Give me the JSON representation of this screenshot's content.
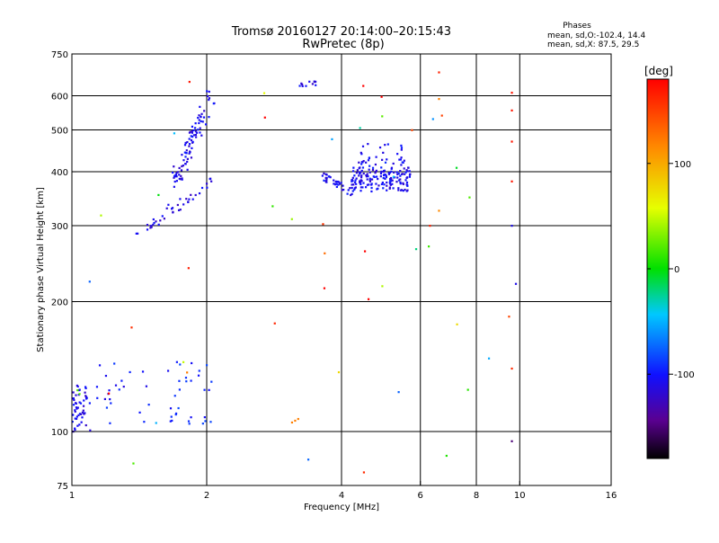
{
  "chart_data": {
    "type": "scatter",
    "title": "Tromsø 20160127 20:14:00–20:15:43",
    "subtitle": "RwPretec (8p)",
    "stats": {
      "header": "Phases",
      "line1": "mean, sd,O:-102.4, 14.4",
      "line2": "mean, sd,X:  87.5, 29.5"
    },
    "xlabel": "Frequency [MHz]",
    "ylabel": "Stationary phase Virtual Height [km]",
    "x_scale": "log",
    "y_scale": "log",
    "xlim": [
      1,
      16
    ],
    "ylim": [
      75,
      750
    ],
    "x_ticks": [
      {
        "v": 1,
        "label": "1"
      },
      {
        "v": 2,
        "label": "2"
      },
      {
        "v": 4,
        "label": "4"
      },
      {
        "v": 6,
        "label": "6"
      },
      {
        "v": 8,
        "label": "8"
      },
      {
        "v": 10,
        "label": "10"
      },
      {
        "v": 16,
        "label": "16"
      }
    ],
    "x_grid": [
      2,
      4,
      6,
      8,
      10
    ],
    "y_ticks": [
      {
        "v": 75,
        "label": "75"
      },
      {
        "v": 100,
        "label": "100"
      },
      {
        "v": 200,
        "label": "200"
      },
      {
        "v": 300,
        "label": "300"
      },
      {
        "v": 400,
        "label": "400"
      },
      {
        "v": 500,
        "label": "500"
      },
      {
        "v": 600,
        "label": "600"
      },
      {
        "v": 750,
        "label": "750"
      }
    ],
    "y_grid": [
      100,
      200,
      300,
      400,
      500,
      600
    ],
    "colorbar": {
      "unit": "[deg]",
      "range": [
        -180,
        180
      ],
      "ticks": [
        {
          "v": 100,
          "label": "100"
        },
        {
          "v": 0,
          "label": "0"
        },
        {
          "v": -100,
          "label": "-100"
        }
      ]
    },
    "clusters": [
      {
        "kind": "band",
        "x": [
          1.0,
          1.1
        ],
        "y": [
          100,
          128
        ],
        "phase": -108,
        "n": 55,
        "seed": 11
      },
      {
        "kind": "band",
        "x": [
          1.1,
          1.5
        ],
        "y": [
          104,
          150
        ],
        "phase": -100,
        "n": 22,
        "seed": 12
      },
      {
        "kind": "band",
        "x": [
          1.6,
          2.05
        ],
        "y": [
          104,
          145
        ],
        "phase": -95,
        "n": 30,
        "seed": 13
      },
      {
        "kind": "line",
        "x": [
          1.38,
          2.05
        ],
        "y": [
          285,
          380
        ],
        "phase": -110,
        "n": 40,
        "spread": 0.04,
        "seed": 21
      },
      {
        "kind": "line",
        "x": [
          1.7,
          2.05
        ],
        "y": [
          380,
          600
        ],
        "phase": -110,
        "n": 90,
        "spread": 0.05,
        "seed": 22
      },
      {
        "kind": "line",
        "x": [
          3.6,
          4.2
        ],
        "y": [
          395,
          358
        ],
        "phase": -108,
        "n": 35,
        "spread": 0.025,
        "seed": 31
      },
      {
        "kind": "band",
        "x": [
          4.2,
          5.7
        ],
        "y": [
          360,
          410
        ],
        "phase": -108,
        "n": 160,
        "seed": 32
      },
      {
        "kind": "band",
        "x": [
          4.3,
          5.6
        ],
        "y": [
          410,
          470
        ],
        "phase": -105,
        "n": 35,
        "seed": 33
      },
      {
        "kind": "band",
        "x": [
          1.0,
          11.0
        ],
        "y": [
          80,
          650
        ],
        "phase": 60,
        "n": 45,
        "seed": 41,
        "phase_spread": 140
      },
      {
        "kind": "band",
        "x": [
          3.2,
          3.5
        ],
        "y": [
          630,
          650
        ],
        "phase": -110,
        "n": 10,
        "seed": 42
      }
    ],
    "points": [
      {
        "x": 3.5,
        "y": 635,
        "phase": -100
      },
      {
        "x": 3.1,
        "y": 105,
        "phase": 120
      },
      {
        "x": 3.15,
        "y": 106,
        "phase": 120
      },
      {
        "x": 3.2,
        "y": 107,
        "phase": 120
      },
      {
        "x": 9.6,
        "y": 610,
        "phase": 170
      },
      {
        "x": 9.6,
        "y": 555,
        "phase": 170
      },
      {
        "x": 9.6,
        "y": 470,
        "phase": 170
      },
      {
        "x": 9.6,
        "y": 380,
        "phase": 170
      },
      {
        "x": 9.6,
        "y": 300,
        "phase": -110
      },
      {
        "x": 9.8,
        "y": 220,
        "phase": -110
      },
      {
        "x": 9.6,
        "y": 140,
        "phase": 160
      },
      {
        "x": 9.6,
        "y": 95,
        "phase": -150
      },
      {
        "x": 6.6,
        "y": 680,
        "phase": 165
      },
      {
        "x": 6.6,
        "y": 590,
        "phase": 120
      },
      {
        "x": 6.7,
        "y": 540,
        "phase": 150
      },
      {
        "x": 6.4,
        "y": 530,
        "phase": -60
      },
      {
        "x": 6.6,
        "y": 325,
        "phase": 115
      },
      {
        "x": 6.3,
        "y": 300,
        "phase": 165
      }
    ]
  }
}
